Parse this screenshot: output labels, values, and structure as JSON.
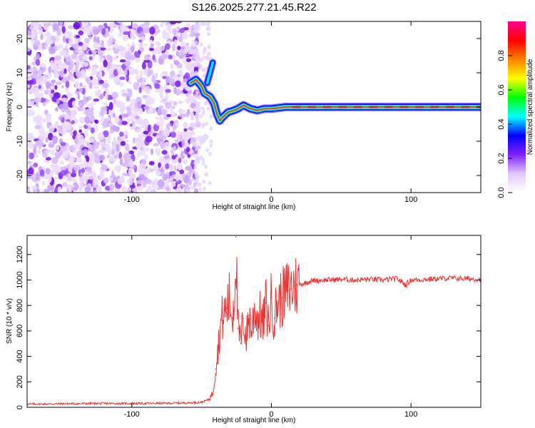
{
  "figure": {
    "title": "S126.2025.277.21.45.R22"
  },
  "chart_data": [
    {
      "type": "heatmap",
      "name": "spectrogram",
      "title": "",
      "xlabel": "Height of straight line (km)",
      "ylabel": "Frequency (Hz)",
      "xlim": [
        -175,
        150
      ],
      "ylim": [
        -25,
        25
      ],
      "xticks": [
        -100,
        0,
        100
      ],
      "yticks": [
        -20,
        -10,
        0,
        10,
        20
      ],
      "colorbar": {
        "label": "Normalized spectral amplitude",
        "range": [
          0,
          1
        ],
        "ticks": [
          0.0,
          0.2,
          0.4,
          0.6,
          0.8
        ],
        "tick_labels": [
          "0.0",
          "0.2",
          "0.4",
          "0.6",
          "0.8"
        ],
        "colormap": [
          "#ffffff",
          "#e0c8ff",
          "#8020ff",
          "#0000ff",
          "#00ffff",
          "#00ff00",
          "#ffff00",
          "#ff8000",
          "#ff0000",
          "#ff0090"
        ]
      },
      "noise_region_x": [
        -175,
        -52
      ],
      "signal_track": [
        {
          "x": -58,
          "y": 7
        },
        {
          "x": -54,
          "y": 8
        },
        {
          "x": -50,
          "y": 6
        },
        {
          "x": -48,
          "y": 4
        },
        {
          "x": -44,
          "y": 3
        },
        {
          "x": -41,
          "y": 1
        },
        {
          "x": -39,
          "y": -2
        },
        {
          "x": -37,
          "y": -4
        },
        {
          "x": -35,
          "y": -3
        },
        {
          "x": -31,
          "y": -1.5
        },
        {
          "x": -27,
          "y": -1
        },
        {
          "x": -24,
          "y": -0.5
        },
        {
          "x": -20,
          "y": 0.5
        },
        {
          "x": -15,
          "y": -0.5
        },
        {
          "x": -10,
          "y": -1
        },
        {
          "x": -5,
          "y": -0.5
        },
        {
          "x": 0,
          "y": -0.5
        },
        {
          "x": 10,
          "y": 0
        },
        {
          "x": 50,
          "y": 0
        },
        {
          "x": 100,
          "y": 0
        },
        {
          "x": 150,
          "y": 0
        }
      ],
      "echo_branch": [
        {
          "x": -46,
          "y": 7
        },
        {
          "x": -44,
          "y": 10
        },
        {
          "x": -42,
          "y": 13
        }
      ]
    },
    {
      "type": "line",
      "name": "snr",
      "title": "",
      "xlabel": "Height of straight line (km)",
      "ylabel": "SNR (10 * v/v)",
      "xlim": [
        -175,
        150
      ],
      "ylim": [
        0,
        1350
      ],
      "xticks": [
        -100,
        0,
        100
      ],
      "yticks": [
        0,
        200,
        400,
        600,
        800,
        1000,
        1200
      ],
      "color": "#ee3333",
      "series": [
        {
          "name": "SNR",
          "x": [
            -175,
            -150,
            -125,
            -100,
            -75,
            -60,
            -50,
            -45,
            -42,
            -40,
            -38,
            -36,
            -34,
            -32,
            -30,
            -28,
            -26,
            -25.5,
            -25,
            -24,
            -22,
            -20,
            -18,
            -16,
            -14,
            -12,
            -10,
            -8,
            -6,
            -4,
            -2,
            0,
            2,
            4,
            6,
            8,
            10,
            12,
            14,
            16,
            18,
            20,
            22,
            24,
            26,
            28,
            30,
            35,
            40,
            45,
            50,
            60,
            70,
            80,
            90,
            93,
            96,
            100,
            110,
            120,
            130,
            140,
            150
          ],
          "values": [
            25,
            28,
            30,
            30,
            32,
            35,
            40,
            60,
            110,
            300,
            480,
            680,
            720,
            780,
            850,
            700,
            980,
            1340,
            1050,
            620,
            500,
            700,
            540,
            720,
            600,
            780,
            700,
            720,
            640,
            820,
            640,
            860,
            700,
            820,
            840,
            860,
            900,
            920,
            930,
            950,
            960,
            965,
            970,
            975,
            985,
            990,
            995,
            998,
            1000,
            1002,
            1005,
            1000,
            1005,
            1000,
            1010,
            990,
            960,
            1000,
            1005,
            1010,
            1015,
            1010,
            1005
          ]
        }
      ]
    }
  ]
}
